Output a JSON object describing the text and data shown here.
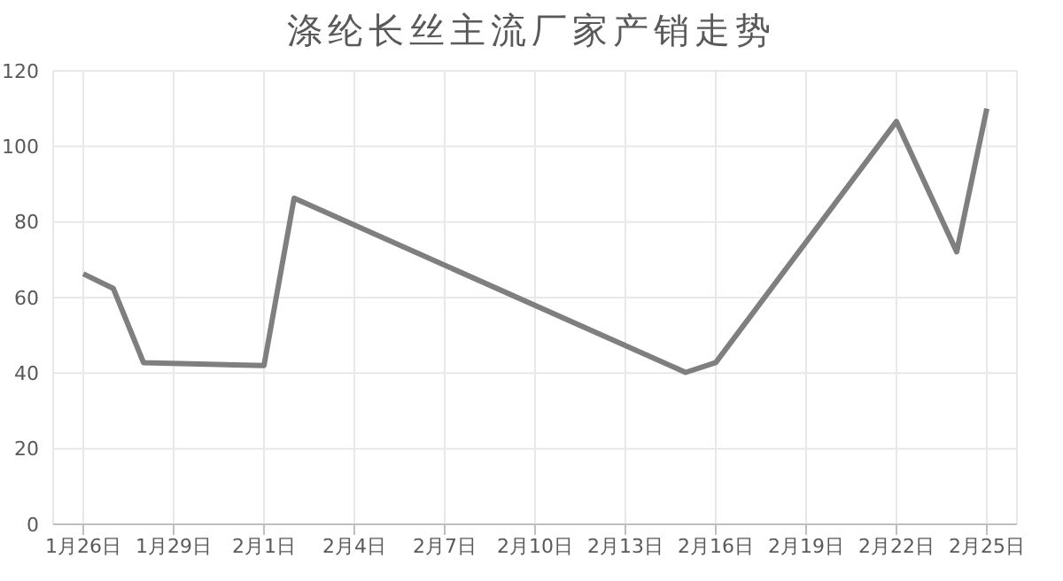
{
  "chart_data": {
    "type": "line",
    "title": "涤纶长丝主流厂家产销走势",
    "x": [
      "--01-26",
      "--01-27",
      "--01-28",
      "--02-01",
      "--02-02",
      "--02-15",
      "--02-16",
      "--02-22",
      "--02-24",
      "--02-25"
    ],
    "series": [
      {
        "color": "#7f7f7f",
        "values": [
          66.3,
          62.4,
          42.8,
          42,
          86.3,
          40.2,
          42.8,
          106.6,
          72.1,
          110
        ]
      }
    ],
    "xlim": [
      "--01-25",
      "--02-26"
    ],
    "xticks": [
      {
        "value": "--01-26",
        "label": "1月26日"
      },
      {
        "value": "--01-29",
        "label": "1月29日"
      },
      {
        "value": "--02-01",
        "label": "2月1日"
      },
      {
        "value": "--02-04",
        "label": "2月4日"
      },
      {
        "value": "--02-07",
        "label": "2月7日"
      },
      {
        "value": "--02-10",
        "label": "2月10日"
      },
      {
        "value": "--02-13",
        "label": "2月13日"
      },
      {
        "value": "--02-16",
        "label": "2月16日"
      },
      {
        "value": "--02-19",
        "label": "2月19日"
      },
      {
        "value": "--02-22",
        "label": "2月22日"
      },
      {
        "value": "--02-25",
        "label": "2月25日"
      }
    ],
    "ylim": [
      0,
      120
    ],
    "yticks": [
      0,
      20,
      40,
      60,
      80,
      100,
      120
    ],
    "grid": true,
    "marker": "none",
    "line_style": "solid"
  }
}
